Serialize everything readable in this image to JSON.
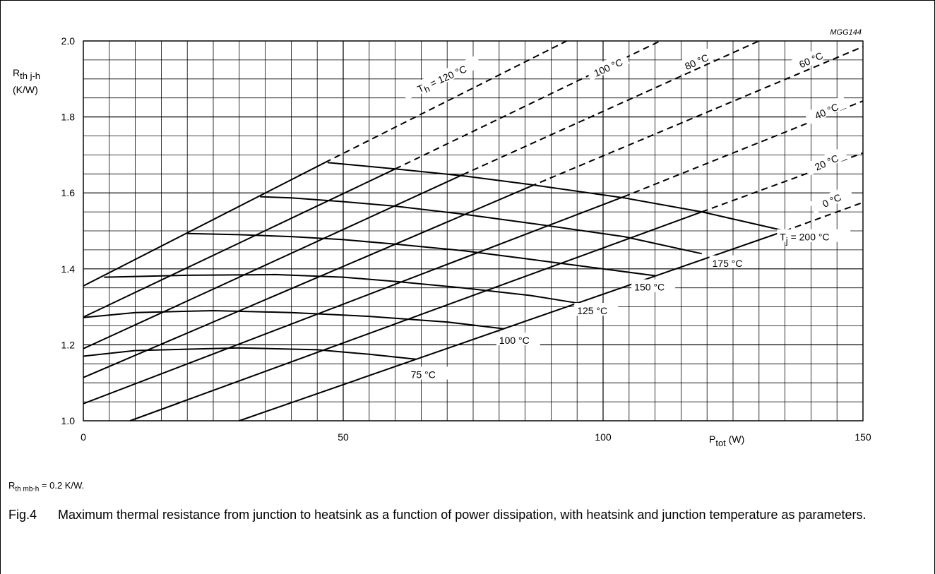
{
  "chart_data": {
    "type": "line",
    "code": "MGG144",
    "ylabel": {
      "main": "R",
      "sub": "th j-h",
      "unit": "(K/W)"
    },
    "xlabel": {
      "main": "P",
      "sub": "tot",
      "unit": "(W)"
    },
    "xlim": [
      0,
      150
    ],
    "ylim": [
      1.0,
      2.0
    ],
    "x_ticks": [
      0,
      50,
      100,
      150
    ],
    "y_ticks": [
      1.0,
      1.2,
      1.4,
      1.6,
      1.8,
      2.0
    ],
    "x_tick_labels": [
      "0",
      "50",
      "100",
      "150"
    ],
    "y_tick_labels": [
      "1.0",
      "1.2",
      "1.4",
      "1.6",
      "1.8",
      "2.0"
    ],
    "grid": true,
    "heatsink_lines": [
      {
        "label_pre": "T",
        "label_sub": "h",
        "label": " = 120 °C",
        "solid": [
          [
            0,
            1.355
          ],
          [
            46.5,
            1.68
          ]
        ],
        "dashed": [
          [
            46.5,
            1.68
          ],
          [
            93,
            2.0
          ]
        ],
        "label_pos": [
          69,
          1.9
        ],
        "angle": -24
      },
      {
        "label": "100 °C",
        "solid": [
          [
            0,
            1.273
          ],
          [
            60,
            1.663
          ]
        ],
        "dashed": [
          [
            60,
            1.663
          ],
          [
            111,
            2.0
          ]
        ],
        "label_pos": [
          101,
          1.93
        ],
        "angle": -24
      },
      {
        "label": "80 °C",
        "solid": [
          [
            0,
            1.19
          ],
          [
            73,
            1.648
          ]
        ],
        "dashed": [
          [
            73,
            1.648
          ],
          [
            130,
            2.0
          ]
        ],
        "label_pos": [
          118,
          1.945
        ],
        "angle": -24
      },
      {
        "label": "60 °C",
        "solid": [
          [
            0,
            1.114
          ],
          [
            86,
            1.617
          ]
        ],
        "dashed": [
          [
            86,
            1.617
          ],
          [
            150,
            1.985
          ]
        ],
        "label_pos": [
          140,
          1.95
        ],
        "angle": -24
      },
      {
        "label": "40 °C",
        "solid": [
          [
            0,
            1.045
          ],
          [
            104,
            1.59
          ]
        ],
        "dashed": [
          [
            104,
            1.59
          ],
          [
            150,
            1.842
          ]
        ],
        "label_pos": [
          143,
          1.815
        ],
        "angle": -24
      },
      {
        "label": "20 °C",
        "solid": [
          [
            9,
            1.0
          ],
          [
            119,
            1.55
          ]
        ],
        "dashed": [
          [
            119,
            1.55
          ],
          [
            150,
            1.705
          ]
        ],
        "label_pos": [
          143,
          1.68
        ],
        "angle": -24
      },
      {
        "label": "0 °C",
        "solid": [
          [
            30,
            1.0
          ],
          [
            135,
            1.5
          ]
        ],
        "dashed": [
          [
            135,
            1.5
          ],
          [
            150,
            1.575
          ]
        ],
        "label_pos": [
          144,
          1.58
        ],
        "angle": -24
      }
    ],
    "junction_curves": [
      {
        "label_pre": "T",
        "label_sub": "j",
        "label": " = 200 °C",
        "points": [
          [
            47,
            1.68
          ],
          [
            60,
            1.663
          ],
          [
            73,
            1.645
          ],
          [
            86,
            1.622
          ],
          [
            104,
            1.587
          ],
          [
            119,
            1.55
          ],
          [
            135,
            1.5
          ]
        ],
        "label_pos": [
          134,
          1.482
        ]
      },
      {
        "label": "175 °C",
        "points": [
          [
            34,
            1.59
          ],
          [
            40,
            1.587
          ],
          [
            50,
            1.577
          ],
          [
            60,
            1.565
          ],
          [
            73,
            1.544
          ],
          [
            86,
            1.52
          ],
          [
            104,
            1.485
          ],
          [
            119,
            1.44
          ]
        ],
        "label_pos": [
          121,
          1.413
        ]
      },
      {
        "label": "150 °C",
        "points": [
          [
            20,
            1.493
          ],
          [
            30,
            1.49
          ],
          [
            40,
            1.485
          ],
          [
            50,
            1.477
          ],
          [
            60,
            1.465
          ],
          [
            73,
            1.448
          ],
          [
            86,
            1.425
          ],
          [
            110,
            1.382
          ]
        ],
        "label_pos": [
          106,
          1.35
        ]
      },
      {
        "label": "125 °C",
        "points": [
          [
            4,
            1.378
          ],
          [
            10,
            1.38
          ],
          [
            20,
            1.383
          ],
          [
            37,
            1.385
          ],
          [
            50,
            1.378
          ],
          [
            60,
            1.367
          ],
          [
            73,
            1.35
          ],
          [
            86,
            1.33
          ],
          [
            95,
            1.31
          ]
        ],
        "label_pos": [
          95,
          1.288
        ]
      },
      {
        "label": "100 °C",
        "points": [
          [
            0,
            1.272
          ],
          [
            10,
            1.285
          ],
          [
            25,
            1.29
          ],
          [
            40,
            1.285
          ],
          [
            55,
            1.275
          ],
          [
            70,
            1.26
          ],
          [
            81,
            1.242
          ]
        ],
        "label_pos": [
          80,
          1.21
        ]
      },
      {
        "label": "75 °C",
        "points": [
          [
            0,
            1.17
          ],
          [
            10,
            1.185
          ],
          [
            30,
            1.192
          ],
          [
            45,
            1.187
          ],
          [
            55,
            1.175
          ],
          [
            64,
            1.162
          ]
        ],
        "label_pos": [
          63,
          1.12
        ]
      }
    ]
  },
  "note": {
    "main": "R",
    "sub": "th mb-h",
    "rest": " = 0.2 K/W."
  },
  "caption": {
    "fig": "Fig.4",
    "text": "Maximum thermal resistance from junction to heatsink as a function of power dissipation, with heatsink and junction temperature as parameters."
  }
}
